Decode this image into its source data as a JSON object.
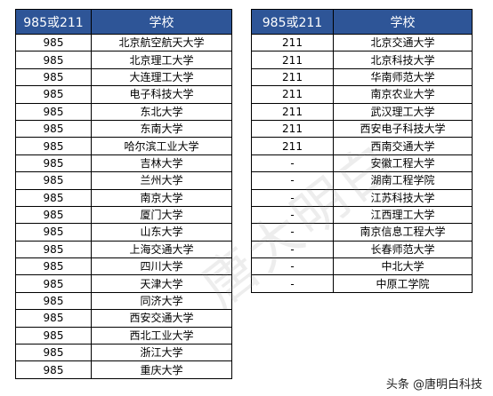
{
  "headers": {
    "type": "985或211",
    "school": "学校"
  },
  "left_rows": [
    {
      "type": "985",
      "school": "北京航空航天大学"
    },
    {
      "type": "985",
      "school": "北京理工大学"
    },
    {
      "type": "985",
      "school": "大连理工大学"
    },
    {
      "type": "985",
      "school": "电子科技大学"
    },
    {
      "type": "985",
      "school": "东北大学"
    },
    {
      "type": "985",
      "school": "东南大学"
    },
    {
      "type": "985",
      "school": "哈尔滨工业大学"
    },
    {
      "type": "985",
      "school": "吉林大学"
    },
    {
      "type": "985",
      "school": "兰州大学"
    },
    {
      "type": "985",
      "school": "南京大学"
    },
    {
      "type": "985",
      "school": "厦门大学"
    },
    {
      "type": "985",
      "school": "山东大学"
    },
    {
      "type": "985",
      "school": "上海交通大学"
    },
    {
      "type": "985",
      "school": "四川大学"
    },
    {
      "type": "985",
      "school": "天津大学"
    },
    {
      "type": "985",
      "school": "同济大学"
    },
    {
      "type": "985",
      "school": "西安交通大学"
    },
    {
      "type": "985",
      "school": "西北工业大学"
    },
    {
      "type": "985",
      "school": "浙江大学"
    },
    {
      "type": "985",
      "school": "重庆大学"
    }
  ],
  "right_rows": [
    {
      "type": "211",
      "school": "北京交通大学"
    },
    {
      "type": "211",
      "school": "北京科技大学"
    },
    {
      "type": "211",
      "school": "华南师范大学"
    },
    {
      "type": "211",
      "school": "南京农业大学"
    },
    {
      "type": "211",
      "school": "武汉理工大学"
    },
    {
      "type": "211",
      "school": "西安电子科技大学"
    },
    {
      "type": "211",
      "school": "西南交通大学"
    },
    {
      "type": "-",
      "school": "安徽工程大学"
    },
    {
      "type": "-",
      "school": "湖南工程学院"
    },
    {
      "type": "-",
      "school": "江苏科技大学"
    },
    {
      "type": "-",
      "school": "江西理工大学"
    },
    {
      "type": "-",
      "school": "南京信息工程大学"
    },
    {
      "type": "-",
      "school": "长春师范大学"
    },
    {
      "type": "-",
      "school": "中北大学"
    },
    {
      "type": "-",
      "school": "中原工学院"
    }
  ],
  "watermark": "唐大明白",
  "source": "头条 @唐明白科技",
  "colors": {
    "header_bg": "#2e5597",
    "header_text": "#ffffff",
    "border": "#000000"
  }
}
